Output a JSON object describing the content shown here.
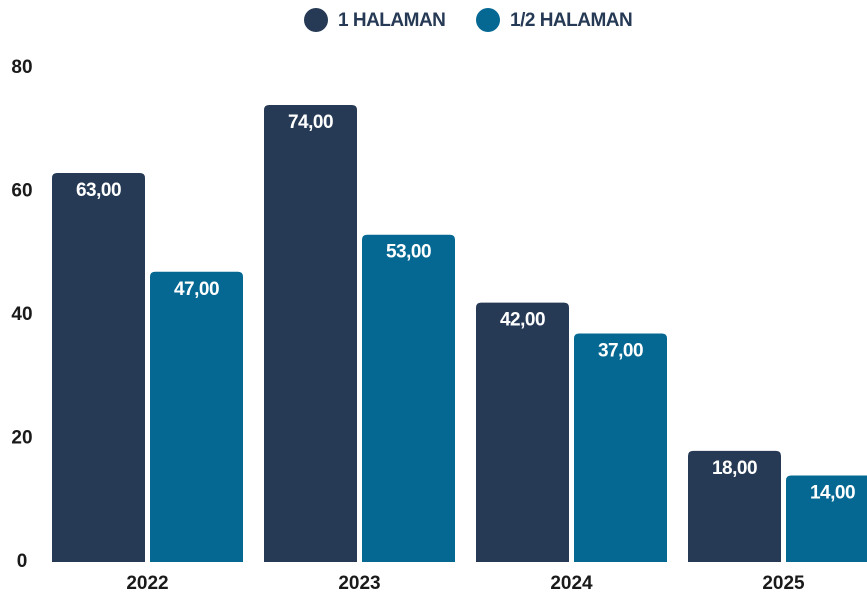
{
  "chart_data": {
    "type": "bar",
    "categories": [
      "2022",
      "2023",
      "2024",
      "2025"
    ],
    "series": [
      {
        "name": "1 HALAMAN",
        "color": "#263a55",
        "values": [
          63,
          74,
          42,
          18
        ],
        "value_labels": [
          "63,00",
          "74,00",
          "42,00",
          "18,00"
        ]
      },
      {
        "name": "1/2 HALAMAN",
        "color": "#046892",
        "values": [
          47,
          53,
          37,
          14
        ],
        "value_labels": [
          "47,00",
          "53,00",
          "37,00",
          "14,00"
        ]
      }
    ],
    "ylim": [
      0,
      80
    ],
    "yticks": [
      0,
      20,
      40,
      60,
      80
    ],
    "legend": "top",
    "grid": false
  }
}
